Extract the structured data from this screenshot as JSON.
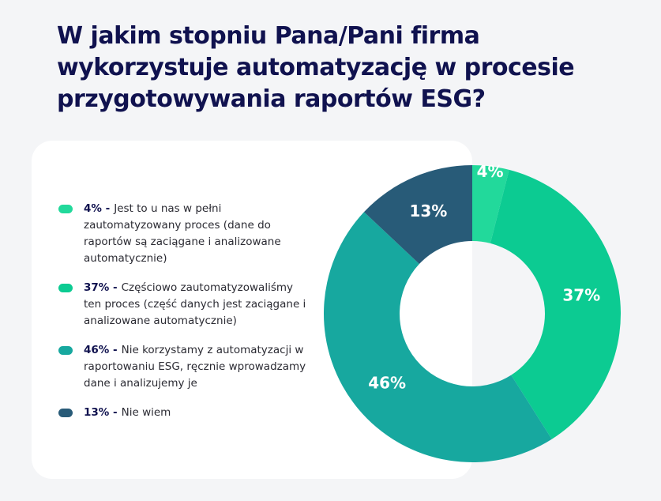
{
  "chart_data": {
    "type": "donut",
    "title": "W jakim stopniu Pana/Pani firma wykorzystuje automatyzację w procesie przygotowywania raportów ESG?",
    "categories": [
      "Jest to u nas w pełni zautomatyzowany proces (dane do raportów są zaciągane i analizowane automatycznie)",
      "Częściowo zautomatyzowaliśmy ten proces (część danych jest zaciągane i analizowane automatycznie)",
      "Nie korzystamy z automatyzacji w raportowaniu ESG, ręcznie wprowadzamy dane i analizujemy je",
      "Nie wiem"
    ],
    "legend_prefixes": [
      "4% -",
      "37% -",
      "46% -",
      "13% -"
    ],
    "values": [
      4,
      37,
      46,
      13
    ],
    "value_labels": [
      "4%",
      "37%",
      "46%",
      "13%"
    ],
    "colors": [
      "#22d99b",
      "#0ccb92",
      "#17a89f",
      "#285b78"
    ]
  }
}
